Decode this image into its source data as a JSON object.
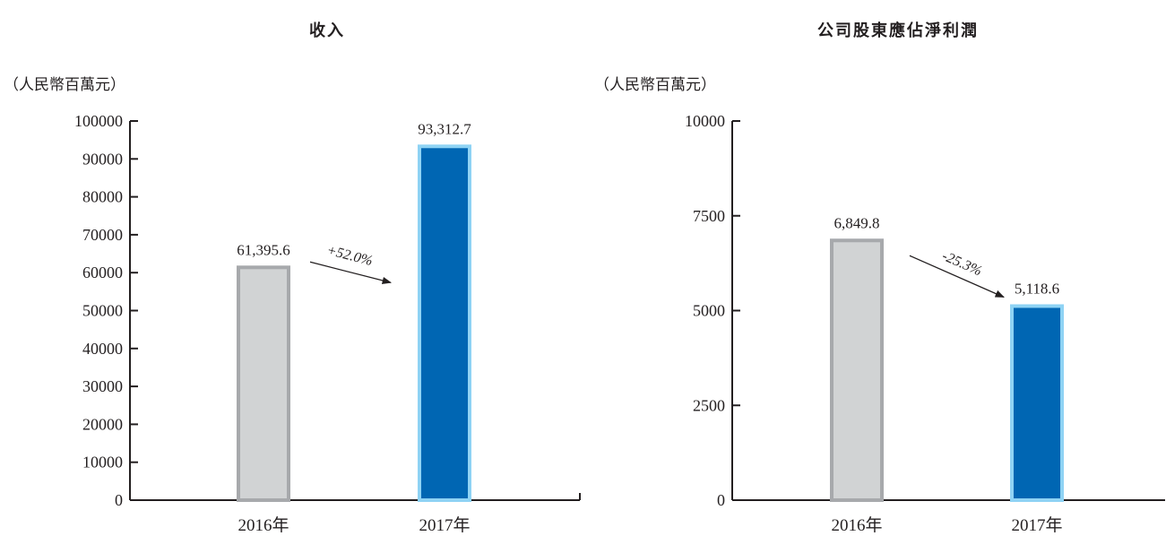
{
  "charts": [
    {
      "title": "收入",
      "unit": "（人民幣百萬元）"
    },
    {
      "title": "公司股東應佔淨利潤",
      "unit": "（人民幣百萬元）"
    }
  ],
  "chart_data": [
    {
      "type": "bar",
      "title": "收入",
      "ylabel": "（人民幣百萬元）",
      "categories": [
        "2016年",
        "2017年"
      ],
      "values": [
        61395.6,
        93312.7
      ],
      "value_labels": [
        "61,395.6",
        "93,312.7"
      ],
      "ylim": [
        0,
        100000
      ],
      "yticks": [
        "0",
        "10000",
        "20000",
        "30000",
        "40000",
        "50000",
        "60000",
        "70000",
        "80000",
        "90000",
        "100000"
      ],
      "change_annotation": "+52.0%",
      "bar_colors": [
        "#d1d3d4",
        "#0066b3"
      ],
      "bar_border_colors": [
        "#a7a9ac",
        "#8fd3f4"
      ],
      "grid": false
    },
    {
      "type": "bar",
      "title": "公司股東應佔淨利潤",
      "ylabel": "（人民幣百萬元）",
      "categories": [
        "2016年",
        "2017年"
      ],
      "values": [
        6849.8,
        5118.6
      ],
      "value_labels": [
        "6,849.8",
        "5,118.6"
      ],
      "ylim": [
        0,
        10000
      ],
      "yticks": [
        "0",
        "2500",
        "5000",
        "7500",
        "10000"
      ],
      "change_annotation": "-25.3%",
      "bar_colors": [
        "#d1d3d4",
        "#0066b3"
      ],
      "bar_border_colors": [
        "#a7a9ac",
        "#8fd3f4"
      ],
      "grid": false
    }
  ]
}
